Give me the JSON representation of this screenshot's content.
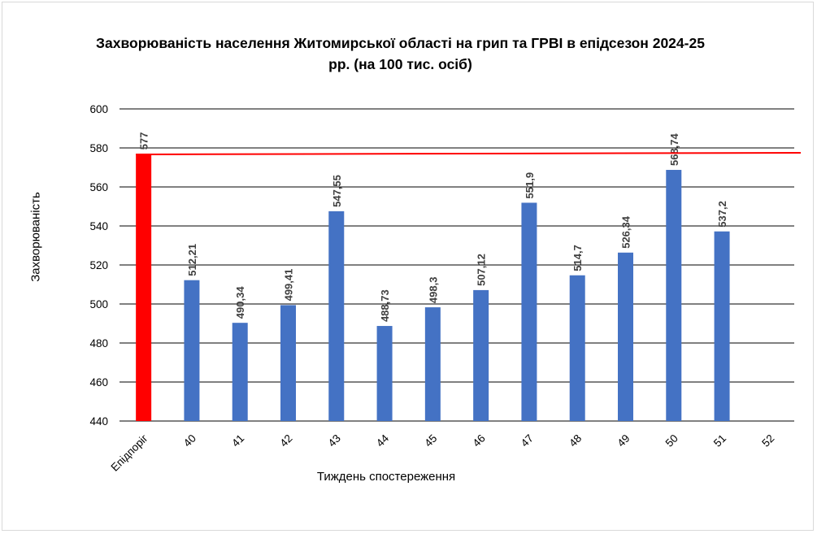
{
  "chart_data": {
    "type": "bar",
    "title_line1": "Захворюваність населення Житомирської області на грип та ГРВІ в епідсезон 2024-25",
    "title_line2": "рр.  (на 100 тис. осіб)",
    "xlabel": "Тиждень спостереження",
    "ylabel": "Захворюваність",
    "ylim": [
      440,
      600
    ],
    "yticks": [
      440,
      460,
      480,
      500,
      520,
      540,
      560,
      580,
      600
    ],
    "grid": true,
    "categories": [
      "Епідпоріг",
      "40",
      "41",
      "42",
      "43",
      "44",
      "45",
      "46",
      "47",
      "48",
      "49",
      "50",
      "51",
      "52"
    ],
    "values": [
      577,
      512.21,
      490.34,
      499.41,
      547.55,
      488.73,
      498.3,
      507.12,
      551.9,
      514.7,
      526.34,
      568.74,
      537.2,
      null
    ],
    "data_labels": [
      "577",
      "512,21",
      "490,34",
      "499,41",
      "547,55",
      "488,73",
      "498,3",
      "507,12",
      "551,9",
      "514,7",
      "526,34",
      "568,74",
      "537,2",
      ""
    ],
    "threshold": 577,
    "colors": {
      "threshold_bar": "#ff0000",
      "bar": "#4472c4",
      "threshold_line": "#ff0000",
      "grid": "#000000"
    }
  }
}
